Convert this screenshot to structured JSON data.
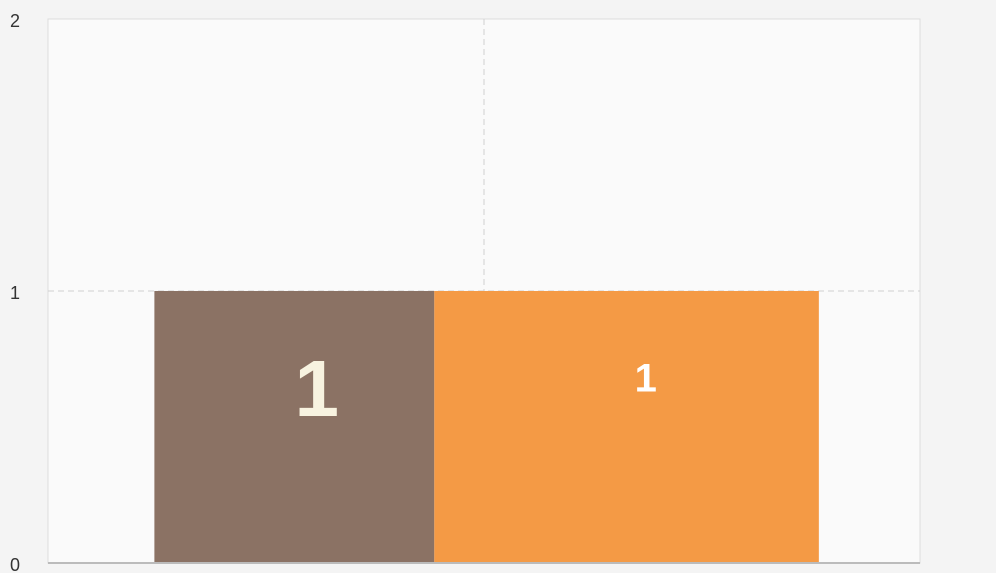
{
  "chart_data": {
    "type": "bar",
    "categories": [
      null
    ],
    "series": [
      {
        "color": "#8b7264",
        "values": [
          1
        ]
      },
      {
        "color": "#f49a45",
        "values": [
          1
        ]
      }
    ],
    "ylim": [
      0,
      2
    ],
    "yticks": [
      0,
      1,
      2
    ],
    "grid": true
  }
}
